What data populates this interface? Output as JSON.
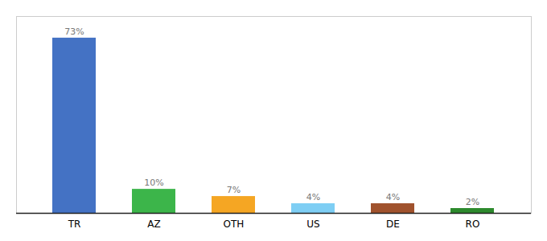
{
  "chart_data": {
    "type": "bar",
    "categories": [
      "TR",
      "AZ",
      "OTH",
      "US",
      "DE",
      "RO"
    ],
    "values": [
      73,
      10,
      7,
      4,
      4,
      2
    ],
    "value_labels": [
      "73%",
      "10%",
      "7%",
      "4%",
      "4%",
      "2%"
    ],
    "colors": [
      "#4472c4",
      "#3cb54a",
      "#f5a623",
      "#7ecef4",
      "#a0522d",
      "#2d8a2d"
    ],
    "ylim": [
      0,
      82
    ],
    "data_labels": true,
    "grid": false,
    "tick_labels": "x"
  }
}
